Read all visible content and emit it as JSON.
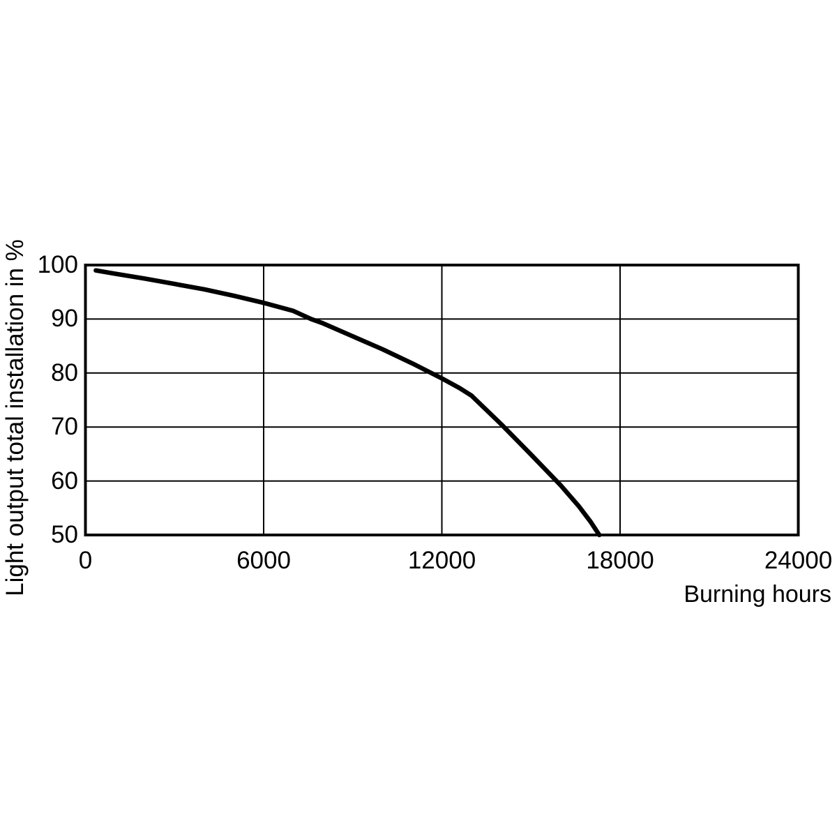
{
  "page": {
    "background_color": "#ffffff",
    "text_color": "#000000"
  },
  "chart_data": {
    "type": "line",
    "title": "",
    "xlabel": "Burning hours",
    "ylabel": "Light output total installation in %",
    "x_ticks": [
      0,
      6000,
      12000,
      18000,
      24000
    ],
    "y_ticks": [
      100,
      90,
      80,
      70,
      60,
      50
    ],
    "xlim": [
      0,
      24000
    ],
    "ylim": [
      50,
      100
    ],
    "grid": true,
    "legend_position": "none",
    "line_color": "#000000",
    "grid_color": "#000000",
    "border_color": "#000000",
    "series": [
      {
        "name": "light-output-vs-burning-hours",
        "points": [
          [
            350,
            99.0
          ],
          [
            1000,
            98.4
          ],
          [
            2000,
            97.5
          ],
          [
            3000,
            96.5
          ],
          [
            4000,
            95.5
          ],
          [
            5000,
            94.3
          ],
          [
            6000,
            93.0
          ],
          [
            7000,
            91.5
          ],
          [
            7600,
            90.0
          ],
          [
            8000,
            89.2
          ],
          [
            9000,
            86.8
          ],
          [
            10000,
            84.4
          ],
          [
            11000,
            81.8
          ],
          [
            12000,
            79.0
          ],
          [
            12600,
            77.2
          ],
          [
            13000,
            75.8
          ],
          [
            14000,
            70.5
          ],
          [
            15000,
            64.9
          ],
          [
            16000,
            59.2
          ],
          [
            16600,
            55.4
          ],
          [
            17000,
            52.5
          ],
          [
            17300,
            50.0
          ]
        ]
      }
    ]
  }
}
